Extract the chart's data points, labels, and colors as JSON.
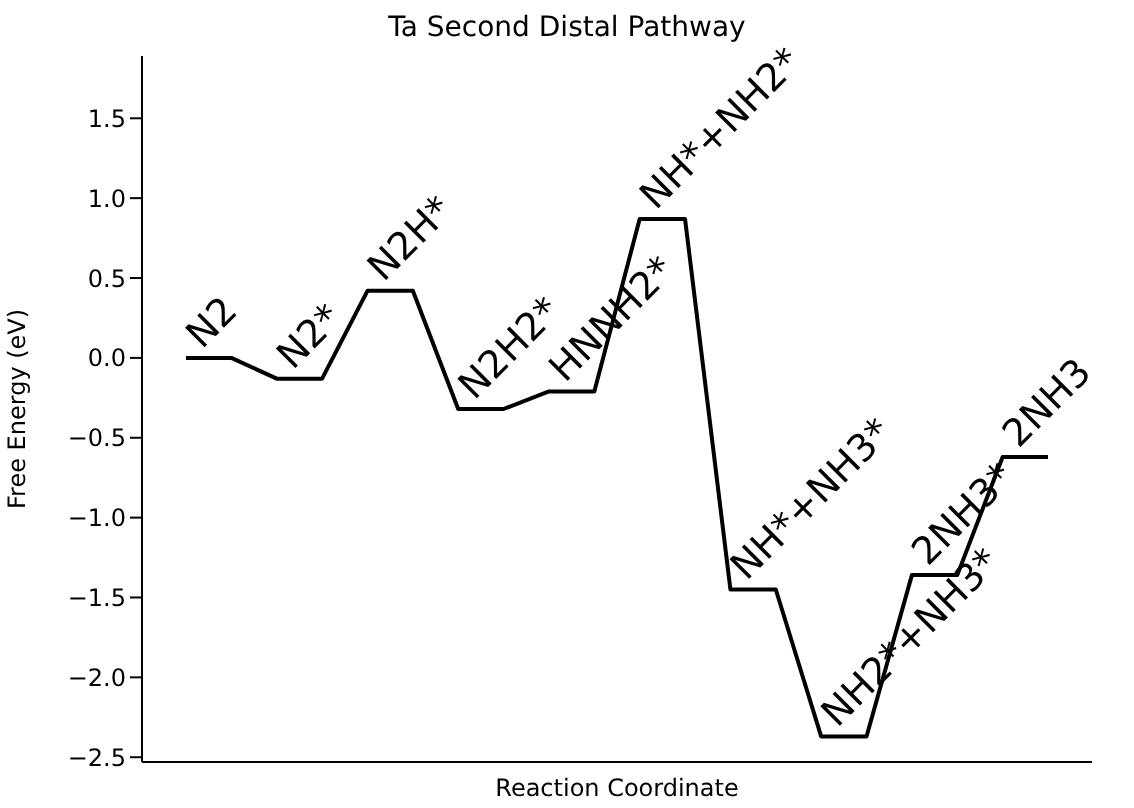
{
  "chart_data": {
    "type": "line",
    "title": "Ta Second Distal Pathway",
    "xlabel": "Reaction Coordinate",
    "ylabel": "Free Energy (eV)",
    "categories": [
      null,
      null,
      null,
      null,
      null,
      null,
      null,
      null,
      null,
      null,
      null,
      null,
      null,
      null,
      null,
      null,
      null,
      null,
      null,
      null
    ],
    "series": [
      {
        "color": "#000000",
        "values": [
          0,
          0,
          -0.13,
          -0.13,
          0.42,
          0.42,
          -0.32,
          -0.32,
          -0.21,
          -0.21,
          0.87,
          0.87,
          -1.45,
          -1.45,
          -2.37,
          -2.37,
          -1.36,
          -1.36,
          -0.62,
          -0.62
        ]
      }
    ],
    "ylim": [
      -2.53,
      1.89
    ],
    "yticks": [
      {
        "value": -2.5,
        "label": "−2.5"
      },
      {
        "value": -2.0,
        "label": "−2.0"
      },
      {
        "value": -1.5,
        "label": "−1.5"
      },
      {
        "value": -1.0,
        "label": "−1.0"
      },
      {
        "value": -0.5,
        "label": "−0.5"
      },
      {
        "value": 0.0,
        "label": "0.0"
      },
      {
        "value": 0.5,
        "label": "0.5"
      },
      {
        "value": 1.0,
        "label": "1.0"
      },
      {
        "value": 1.5,
        "label": "1.5"
      }
    ],
    "tick_labels": "y",
    "marker": "none",
    "line_style": "solid",
    "annotations": [
      "N2",
      "N2*",
      "N2H*",
      "N2H2*",
      "HNNH2*",
      "NH*+NH2*",
      "NH*+NH3*",
      "NH2*+NH3*",
      "2NH3*",
      "2NH3"
    ]
  }
}
